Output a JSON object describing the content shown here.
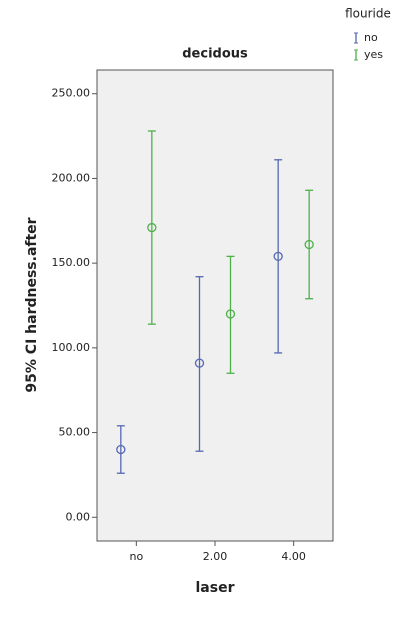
{
  "chart_data": {
    "type": "errorbar",
    "title": "decidous",
    "x_label": "laser",
    "y_label": "95% CI hardness.after",
    "legend_title": "flouride",
    "legend_position": "top-right",
    "categories": [
      "no",
      "2.00",
      "4.00"
    ],
    "series": [
      {
        "name": "no",
        "color": "#5467b3",
        "values": [
          40,
          91,
          154
        ],
        "lower": [
          26,
          39,
          97
        ],
        "upper": [
          54,
          142,
          211
        ]
      },
      {
        "name": "yes",
        "color": "#4fb04a",
        "values": [
          171,
          120,
          161
        ],
        "lower": [
          114,
          85,
          129
        ],
        "upper": [
          228,
          154,
          193
        ]
      }
    ],
    "ylim": [
      -14,
      264
    ],
    "yticks": [
      {
        "value": 0,
        "label": "0.00"
      },
      {
        "value": 50,
        "label": "50.00"
      },
      {
        "value": 100,
        "label": "100.00"
      },
      {
        "value": 150,
        "label": "150.00"
      },
      {
        "value": 200,
        "label": "200.00"
      },
      {
        "value": 250,
        "label": "250.00"
      }
    ]
  }
}
